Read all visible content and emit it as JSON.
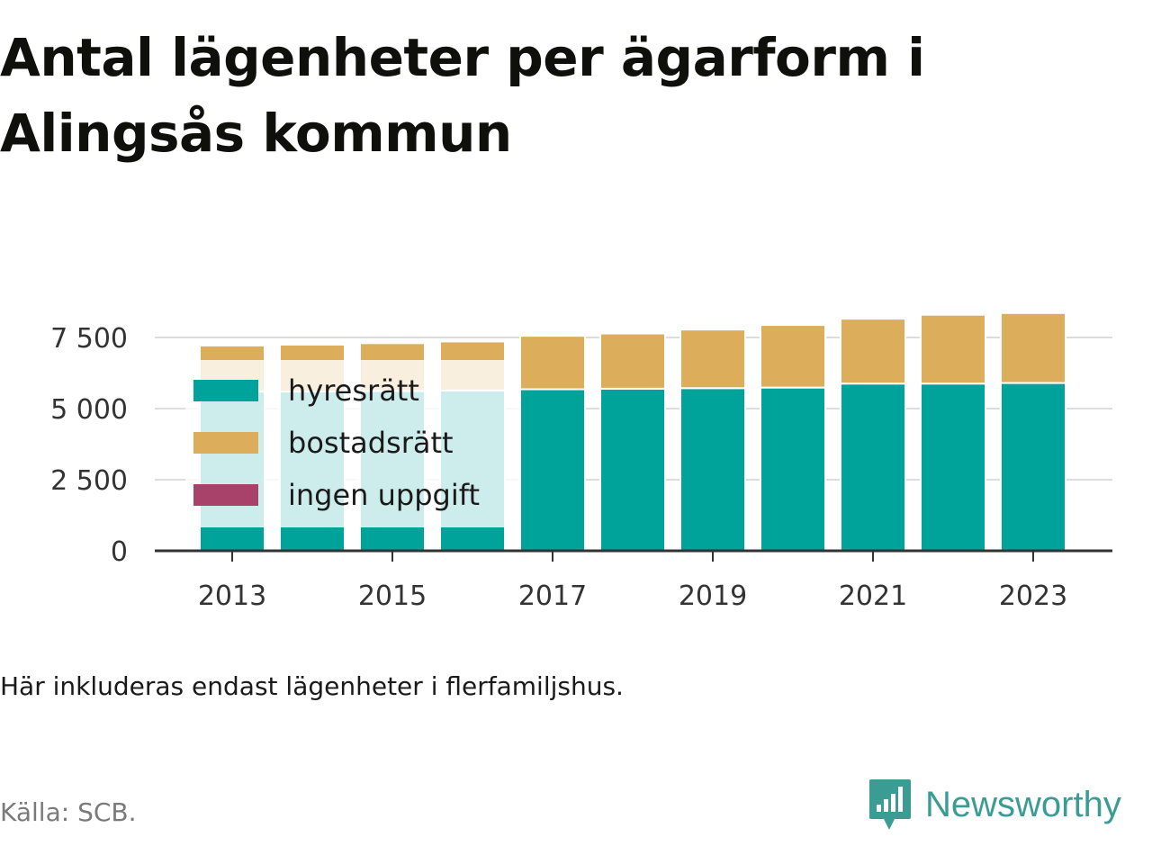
{
  "header": {
    "title_line1": "Antal lägenheter per ägarform i",
    "title_line2": "Alingsås kommun"
  },
  "footer": {
    "note": "Här inkluderas endast lägenheter i flerfamiljshus.",
    "source": "Källa: SCB.",
    "brand": "Newsworthy"
  },
  "colors": {
    "hyresratt": "#00a39a",
    "bostadsratt": "#dcae5b",
    "ingen_uppgift": "#a8426b",
    "grid": "#dddddd",
    "axis": "#333333",
    "brand": "#3a9c92"
  },
  "chart_data": {
    "type": "bar",
    "stacked": true,
    "categories": [
      "2013",
      "2014",
      "2015",
      "2016",
      "2017",
      "2018",
      "2019",
      "2020",
      "2021",
      "2022",
      "2023"
    ],
    "x_tick_labels": [
      "2013",
      "2015",
      "2017",
      "2019",
      "2021",
      "2023"
    ],
    "y_tick_labels": [
      "0",
      "2 500",
      "5 000",
      "7 500"
    ],
    "y_ticks": [
      0,
      2500,
      5000,
      7500
    ],
    "ylim": [
      0,
      8500
    ],
    "grid": true,
    "legend_position": "left",
    "series": [
      {
        "name": "hyresrätt",
        "color": "#00a39a",
        "values": [
          5600,
          5600,
          5620,
          5640,
          5680,
          5700,
          5720,
          5740,
          5880,
          5880,
          5900
        ]
      },
      {
        "name": "bostadsrätt",
        "color": "#dcae5b",
        "values": [
          1620,
          1650,
          1680,
          1720,
          1880,
          1940,
          2060,
          2200,
          2280,
          2420,
          2460
        ]
      },
      {
        "name": "ingen uppgift",
        "color": "#a8426b",
        "values": [
          0,
          0,
          0,
          0,
          0,
          0,
          0,
          0,
          0,
          0,
          0
        ]
      }
    ]
  }
}
